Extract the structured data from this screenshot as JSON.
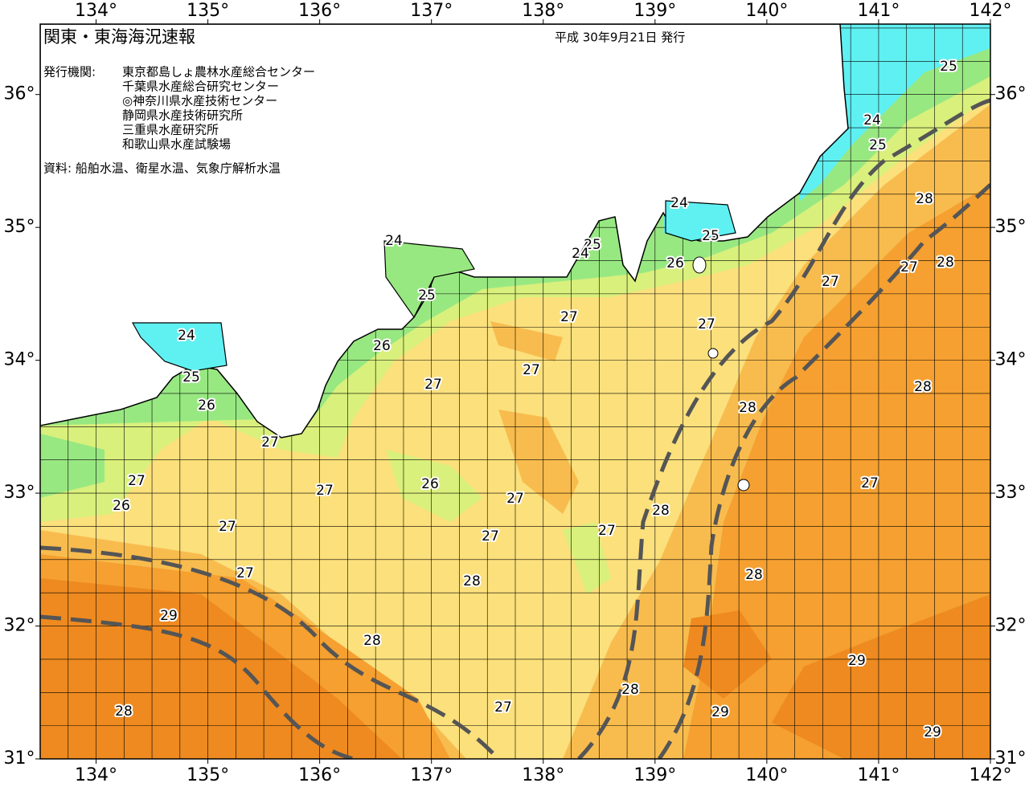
{
  "map": {
    "title": "関東・東海海況速報",
    "issue_date": "平成 30年9月21日 発行",
    "issuer_label": "発行機関:",
    "issuers": [
      "東京都島しょ農林水産総合センター",
      "千葉県水産総合研究センター",
      "◎神奈川県水産技術センター",
      "静岡県水産技術研究所",
      "三重県水産研究所",
      "和歌山県水産試験場"
    ],
    "source": "資料: 船舶水温、衛星水温、気象庁解析水温",
    "xlim": [
      133.5,
      142
    ],
    "ylim": [
      31,
      36.53
    ],
    "xticks": [
      {
        "value": 134,
        "label": "134°"
      },
      {
        "value": 135,
        "label": "135°"
      },
      {
        "value": 136,
        "label": "136°"
      },
      {
        "value": 137,
        "label": "137°"
      },
      {
        "value": 138,
        "label": "138°"
      },
      {
        "value": 139,
        "label": "139°"
      },
      {
        "value": 140,
        "label": "140°"
      },
      {
        "value": 141,
        "label": "141°"
      },
      {
        "value": 142,
        "label": "142°"
      }
    ],
    "yticks": [
      {
        "value": 31,
        "label": "31°"
      },
      {
        "value": 32,
        "label": "32°"
      },
      {
        "value": 33,
        "label": "33°"
      },
      {
        "value": 34,
        "label": "34°"
      },
      {
        "value": 35,
        "label": "35°"
      },
      {
        "value": 36,
        "label": "36°"
      }
    ],
    "contour_labels": [
      25,
      24,
      25,
      28,
      24,
      25,
      28,
      27,
      24,
      25,
      24,
      26,
      27,
      25,
      27,
      27,
      24,
      26,
      27,
      25,
      27,
      28,
      26,
      28,
      27,
      27,
      26,
      27,
      27,
      27,
      26,
      28,
      27,
      27,
      27,
      27,
      28,
      28,
      29,
      28,
      29,
      28,
      27,
      29,
      28,
      29
    ]
  }
}
